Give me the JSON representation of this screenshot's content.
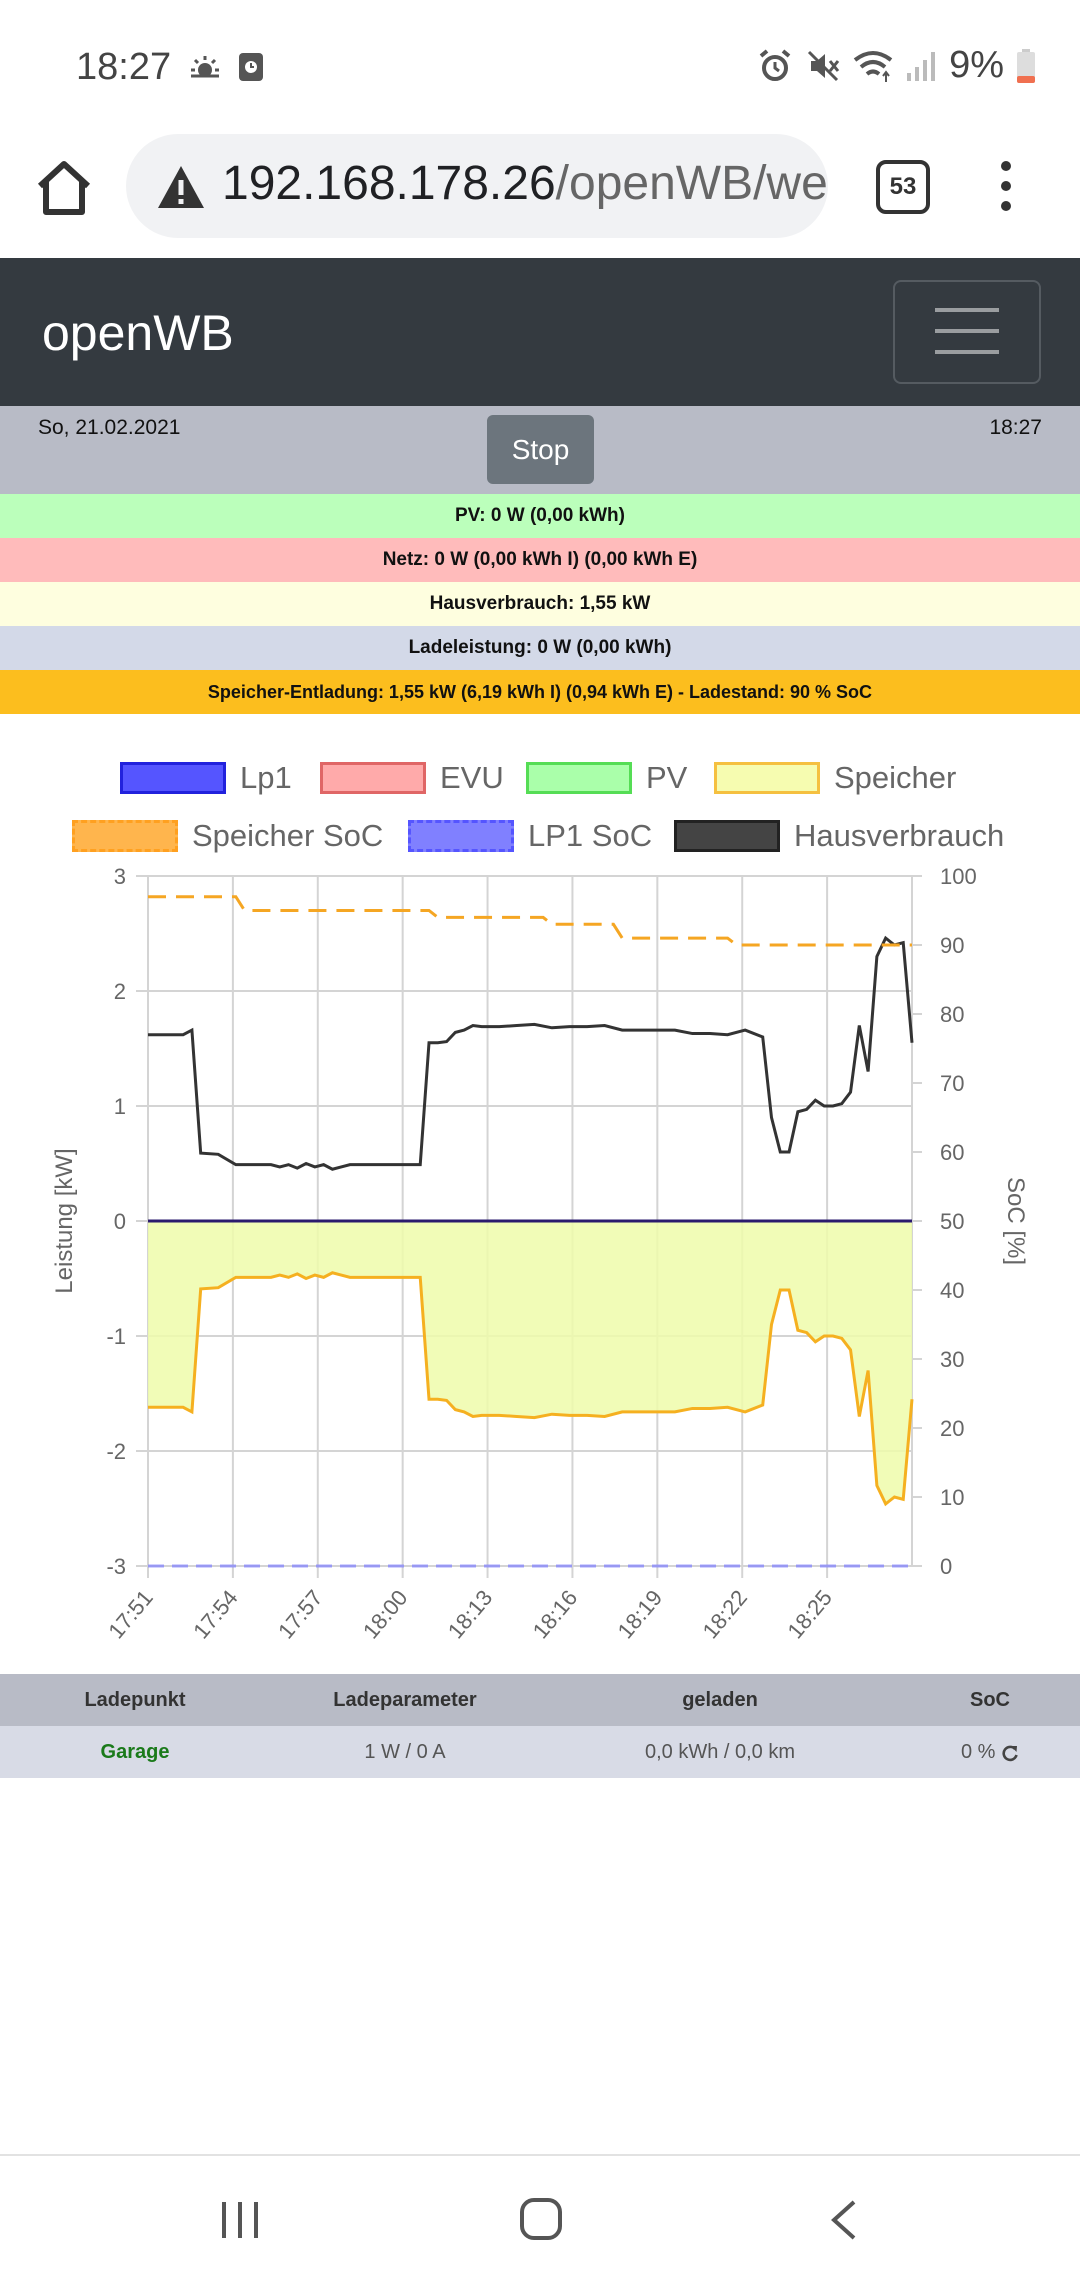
{
  "status_bar": {
    "time": "18:27",
    "battery_percent": "9%",
    "icons": [
      "weather-icon",
      "screen-record-icon",
      "alarm-icon",
      "mute-icon",
      "wifi-icon",
      "signal-icon",
      "battery-icon"
    ]
  },
  "browser": {
    "url_host": "192.168.178.26",
    "url_path": "/openWB/we",
    "tab_count": "53"
  },
  "navbar": {
    "brand": "openWB"
  },
  "info": {
    "date": "So, 21.02.2021",
    "time": "18:27",
    "stop_label": "Stop"
  },
  "bars": {
    "pv": "PV: 0 W (0,00 kWh)",
    "netz": "Netz: 0 W (0,00 kWh I) (0,00 kWh E)",
    "haus": "Hausverbrauch: 1,55 kW",
    "lade": "Ladeleistung: 0 W (0,00 kWh)",
    "speicher": "Speicher-Entladung: 1,55 kW (6,19 kWh I) (0,94 kWh E) - Ladestand: 90 % SoC"
  },
  "colors": {
    "pv_bar": "#bbffbb",
    "netz_bar": "#ffbbbb",
    "haus_bar": "#fefedf",
    "lade_bar": "#d3d9e8",
    "speicher_bar": "#fcbe1e",
    "navbar": "#343a40"
  },
  "chart_data": {
    "type": "line",
    "legend_position": "top",
    "grid": true,
    "ylabel": "Leistung [kW]",
    "y2label": "SoC [%]",
    "ylim": [
      -3,
      3
    ],
    "y2lim": [
      0,
      100
    ],
    "yticks": [
      "3",
      "2",
      "1",
      "0",
      "-1",
      "-2",
      "-3"
    ],
    "y2ticks": [
      "100",
      "90",
      "80",
      "70",
      "60",
      "50",
      "40",
      "30",
      "20",
      "10",
      "0"
    ],
    "xticks": [
      "17:51",
      "17:54",
      "17:57",
      "18:00",
      "18:13",
      "18:16",
      "18:19",
      "18:22",
      "18:25"
    ],
    "legend": [
      {
        "name": "Lp1",
        "fill": "#5555ff",
        "border": "#2222dd",
        "dashed": false
      },
      {
        "name": "EVU",
        "fill": "#ffaaaa",
        "border": "#e06666",
        "dashed": false
      },
      {
        "name": "PV",
        "fill": "#aaffaa",
        "border": "#55dd55",
        "dashed": false
      },
      {
        "name": "Speicher",
        "fill": "#f6fcb0",
        "border": "#f5c040",
        "dashed": false
      },
      {
        "name": "Speicher SoC",
        "fill": "#ffb54d",
        "border": "#ffa020",
        "dashed": true
      },
      {
        "name": "LP1 SoC",
        "fill": "#8080ff",
        "border": "#5555ff",
        "dashed": true
      },
      {
        "name": "Hausverbrauch",
        "fill": "#444444",
        "border": "#222222",
        "dashed": false
      }
    ],
    "x_index": [
      0,
      4,
      5,
      6,
      8,
      10,
      12,
      14,
      15,
      16,
      17,
      18,
      19,
      20,
      21,
      22,
      23,
      24,
      25,
      26,
      27,
      28,
      29,
      30,
      31,
      32,
      33,
      34,
      35,
      36,
      37,
      38,
      40,
      42,
      44,
      46,
      48,
      50,
      52,
      54,
      56,
      58,
      60,
      62,
      64,
      66,
      68,
      70,
      71,
      72,
      73,
      74,
      75,
      76,
      77,
      78,
      79,
      80,
      81,
      82,
      83,
      84,
      85,
      86,
      87
    ],
    "series": [
      {
        "name": "Hausverbrauch",
        "color": "#333333",
        "values": [
          1.62,
          1.62,
          1.66,
          0.59,
          0.58,
          0.49,
          0.49,
          0.49,
          0.47,
          0.49,
          0.46,
          0.5,
          0.47,
          0.49,
          0.45,
          0.47,
          0.49,
          0.49,
          0.49,
          0.49,
          0.49,
          0.49,
          0.49,
          0.49,
          0.49,
          1.55,
          1.55,
          1.56,
          1.64,
          1.66,
          1.7,
          1.69,
          1.69,
          1.7,
          1.71,
          1.68,
          1.69,
          1.69,
          1.7,
          1.66,
          1.66,
          1.66,
          1.66,
          1.63,
          1.63,
          1.62,
          1.66,
          1.6,
          0.9,
          0.6,
          0.6,
          0.95,
          0.97,
          1.05,
          1.0,
          1.0,
          1.02,
          1.12,
          1.7,
          1.3,
          2.3,
          2.46,
          2.4,
          2.42,
          1.55
        ]
      },
      {
        "name": "Speicher",
        "color": "#f5b020",
        "values": [
          -1.62,
          -1.62,
          -1.66,
          -0.59,
          -0.58,
          -0.49,
          -0.49,
          -0.49,
          -0.47,
          -0.49,
          -0.46,
          -0.5,
          -0.47,
          -0.49,
          -0.45,
          -0.47,
          -0.49,
          -0.49,
          -0.49,
          -0.49,
          -0.49,
          -0.49,
          -0.49,
          -0.49,
          -0.49,
          -1.55,
          -1.55,
          -1.56,
          -1.64,
          -1.66,
          -1.7,
          -1.69,
          -1.69,
          -1.7,
          -1.71,
          -1.68,
          -1.69,
          -1.69,
          -1.7,
          -1.66,
          -1.66,
          -1.66,
          -1.66,
          -1.63,
          -1.63,
          -1.62,
          -1.66,
          -1.6,
          -0.9,
          -0.6,
          -0.6,
          -0.95,
          -0.97,
          -1.05,
          -1.0,
          -1.0,
          -1.02,
          -1.12,
          -1.7,
          -1.3,
          -2.3,
          -2.46,
          -2.4,
          -2.42,
          -1.55
        ]
      },
      {
        "name": "Speicher SoC",
        "color": "#f5a623",
        "x_index": [
          0,
          10,
          11,
          32,
          33,
          45,
          46,
          53,
          54,
          66,
          67,
          76,
          77,
          87
        ],
        "values": [
          97,
          97,
          95,
          95,
          94,
          94,
          93,
          93,
          91,
          91,
          90,
          90,
          90,
          90
        ]
      },
      {
        "name": "Lp1",
        "color": "#2a1a6e",
        "value": 0
      }
    ]
  },
  "table": {
    "headers": [
      "Ladepunkt",
      "Ladeparameter",
      "geladen",
      "SoC"
    ],
    "row": {
      "ladepunkt": "Garage",
      "ladeparameter": "1 W / 0 A",
      "geladen": "0,0 kWh / 0,0 km",
      "soc": "0 %"
    }
  }
}
